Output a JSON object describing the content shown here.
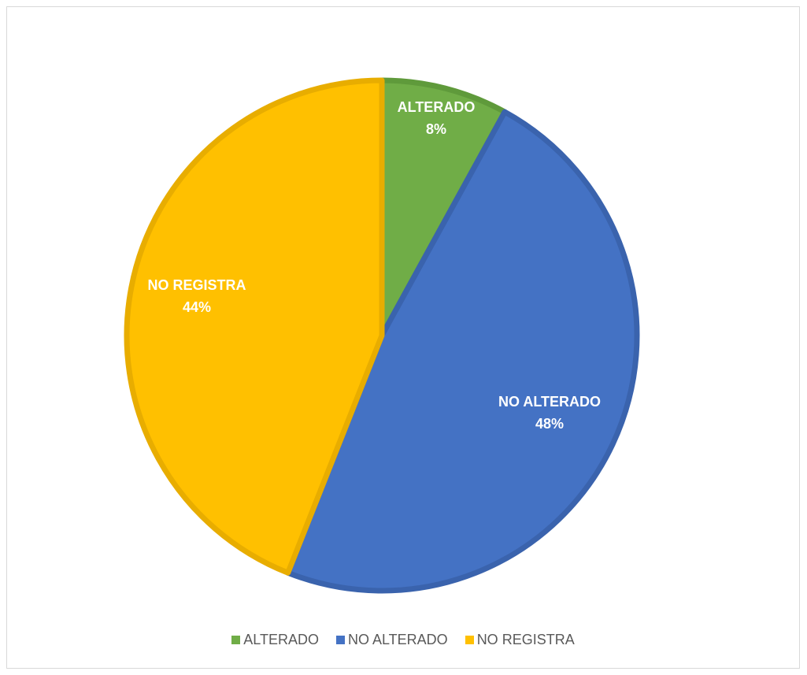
{
  "chart_data": {
    "type": "pie",
    "title": "",
    "slices": [
      {
        "label": "ALTERADO",
        "value": 8,
        "display": "8%",
        "color": "#70ad47",
        "border": "#5f9a3b"
      },
      {
        "label": "NO ALTERADO",
        "value": 48,
        "display": "48%",
        "color": "#4472c4",
        "border": "#3a63ad"
      },
      {
        "label": "NO REGISTRA",
        "value": 44,
        "display": "44%",
        "color": "#ffc000",
        "border": "#e8ad00"
      }
    ],
    "legend_position": "bottom",
    "data_labels": "category and percentage"
  }
}
